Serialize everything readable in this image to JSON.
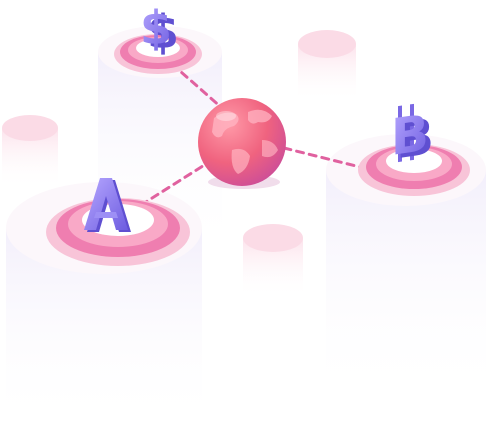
{
  "illustration": {
    "description_free": true,
    "icons": {
      "center": "globe-icon",
      "left": "a-letter-icon",
      "top": "dollar-sign-icon",
      "right": "bitcoin-icon"
    },
    "colors": {
      "ring_outer": "#f6b3d0",
      "ring_mid": "#f27ab0",
      "ring_inner": "#e25aa0",
      "disc": "#ffffff",
      "cylinder_top": "#fdf6fb",
      "cylinder_side": "#f4f1fb",
      "connector": "#e0619f",
      "globe_light": "#ff8a9e",
      "globe_dark": "#d9498c",
      "token_purple": "#8b7cf0",
      "token_purple_dark": "#6b5ad8",
      "ghost_pink": "#fbd6e3"
    },
    "token_glyphs": {
      "top": "$",
      "right": "B"
    }
  }
}
